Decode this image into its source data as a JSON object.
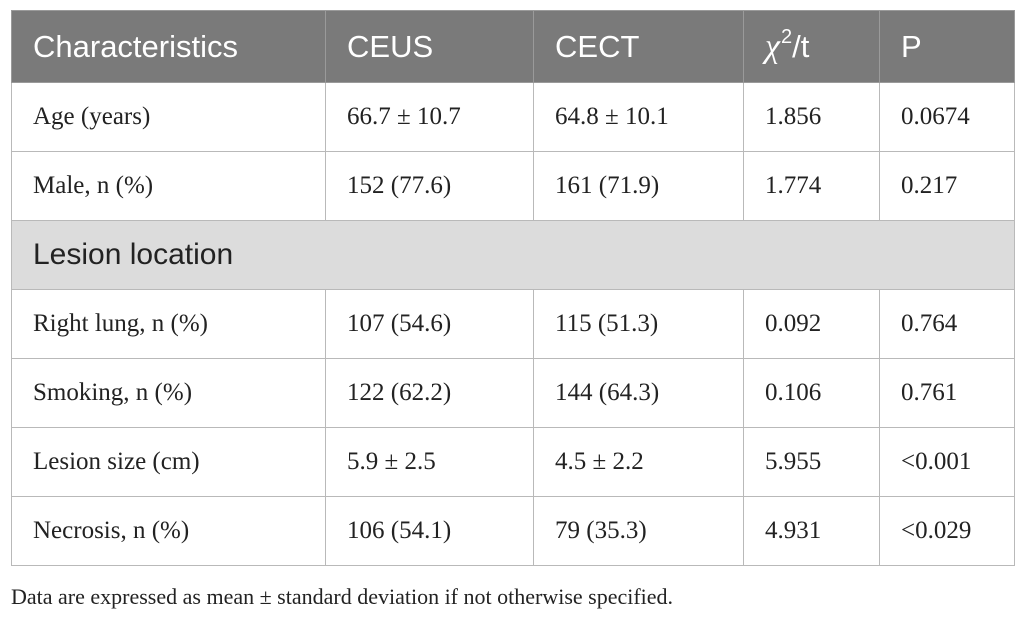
{
  "table": {
    "headers": {
      "characteristics": "Characteristics",
      "ceus": "CEUS",
      "cect": "CECT",
      "stat_symbol": "χ",
      "stat_superscript": "2",
      "stat_suffix": "/t",
      "p": "P"
    },
    "rows": [
      {
        "label": "Age (years)",
        "ceus": "66.7 ± 10.7",
        "cect": "64.8 ± 10.1",
        "stat": "1.856",
        "p": "0.0674"
      },
      {
        "label": "Male, n (%)",
        "ceus": "152 (77.6)",
        "cect": "161 (71.9)",
        "stat": "1.774",
        "p": "0.217"
      }
    ],
    "section_label": "Lesion location",
    "rows_after_section": [
      {
        "label": "Right lung, n (%)",
        "ceus": "107 (54.6)",
        "cect": "115 (51.3)",
        "stat": "0.092",
        "p": "0.764"
      },
      {
        "label": "Smoking, n (%)",
        "ceus": "122 (62.2)",
        "cect": "144 (64.3)",
        "stat": "0.106",
        "p": "0.761"
      },
      {
        "label": "Lesion size (cm)",
        "ceus": "5.9 ± 2.5",
        "cect": "4.5 ± 2.2",
        "stat": "5.955",
        "p": "<0.001"
      },
      {
        "label": "Necrosis, n (%)",
        "ceus": "106 (54.1)",
        "cect": "79 (35.3)",
        "stat": "4.931",
        "p": "<0.029"
      }
    ]
  },
  "footnote": "Data are expressed as mean ± standard deviation if not otherwise specified."
}
